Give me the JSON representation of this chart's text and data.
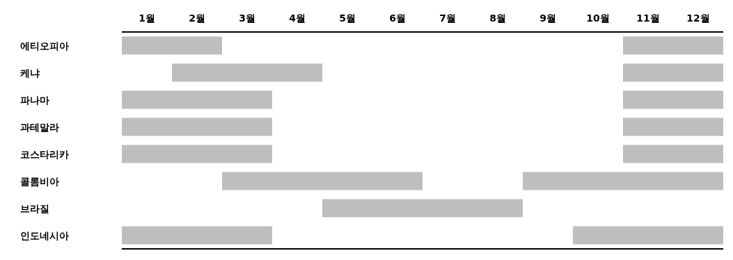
{
  "chart_data": {
    "type": "bar",
    "orientation": "horizontal",
    "categories": [
      "에티오피아",
      "케냐",
      "파나마",
      "과테말라",
      "코스타리카",
      "콜롬비아",
      "브라질",
      "인도네시아"
    ],
    "xlim": [
      0,
      12
    ],
    "xticks": [
      {
        "value": 0.5,
        "label": "1월"
      },
      {
        "value": 1.5,
        "label": "2월"
      },
      {
        "value": 2.5,
        "label": "3월"
      },
      {
        "value": 3.5,
        "label": "4월"
      },
      {
        "value": 4.5,
        "label": "5월"
      },
      {
        "value": 5.5,
        "label": "6월"
      },
      {
        "value": 6.5,
        "label": "7월"
      },
      {
        "value": 7.5,
        "label": "8월"
      },
      {
        "value": 8.5,
        "label": "9월"
      },
      {
        "value": 9.5,
        "label": "10월"
      },
      {
        "value": 10.5,
        "label": "11월"
      },
      {
        "value": 11.5,
        "label": "12월"
      }
    ],
    "series": [
      {
        "color": "#bebebe",
        "base": [
          0,
          1,
          0,
          0,
          0,
          2,
          4,
          0
        ],
        "values": [
          2,
          3,
          3,
          3,
          3,
          4,
          4,
          3
        ]
      },
      {
        "color": "#bebebe",
        "base": [
          10,
          10,
          10,
          10,
          10,
          8,
          null,
          9
        ],
        "values": [
          2,
          2,
          2,
          2,
          2,
          4,
          null,
          3
        ]
      }
    ]
  }
}
